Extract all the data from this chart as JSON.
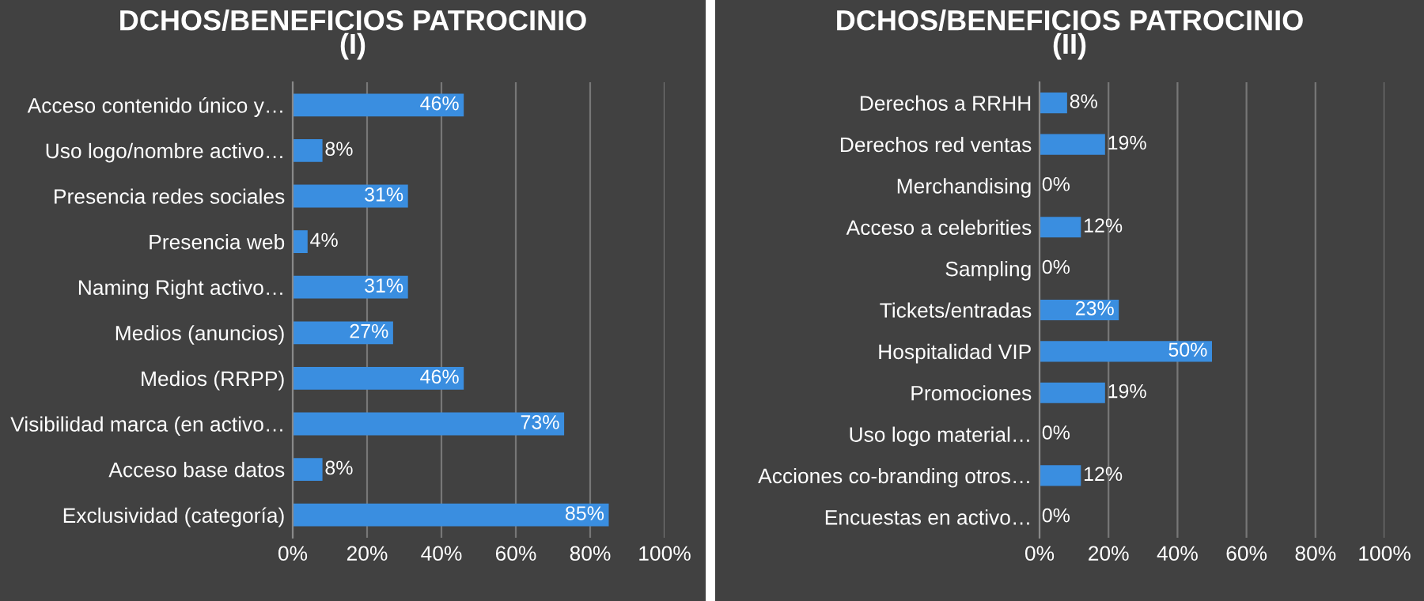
{
  "chart_data": [
    {
      "type": "bar",
      "orientation": "horizontal",
      "title": "DCHOS/BENEFICIOS PATROCINIO\n(I)",
      "categories": [
        "Acceso contenido único y…",
        "Uso logo/nombre activo…",
        "Presencia redes sociales",
        "Presencia web",
        "Naming Right activo…",
        "Medios (anuncios)",
        "Medios (RRPP)",
        "Visibilidad marca (en activo…",
        "Acceso base datos",
        "Exclusividad (categoría)"
      ],
      "values": [
        46,
        8,
        31,
        4,
        31,
        27,
        46,
        73,
        8,
        85
      ],
      "value_labels": [
        "46%",
        "8%",
        "31%",
        "4%",
        "31%",
        "27%",
        "46%",
        "73%",
        "8%",
        "85%"
      ],
      "color": "#3a8ee0",
      "xlim": [
        0,
        100
      ],
      "xticks": [
        {
          "value": 0,
          "label": "0%"
        },
        {
          "value": 20,
          "label": "20%"
        },
        {
          "value": 40,
          "label": "40%"
        },
        {
          "value": 60,
          "label": "60%"
        },
        {
          "value": 80,
          "label": "80%"
        },
        {
          "value": 100,
          "label": "100%"
        }
      ],
      "grid": "x"
    },
    {
      "type": "bar",
      "orientation": "horizontal",
      "title": "DCHOS/BENEFICIOS PATROCINIO\n(II)",
      "categories": [
        "Derechos a RRHH",
        "Derechos red ventas",
        "Merchandising",
        "Acceso a celebrities",
        "Sampling",
        "Tickets/entradas",
        "Hospitalidad VIP",
        "Promociones",
        "Uso logo material…",
        "Acciones co-branding otros…",
        "Encuestas en activo…"
      ],
      "values": [
        8,
        19,
        0,
        12,
        0,
        23,
        50,
        19,
        0,
        12,
        0
      ],
      "value_labels": [
        "8%",
        "19%",
        "0%",
        "12%",
        "0%",
        "23%",
        "50%",
        "19%",
        "0%",
        "12%",
        "0%"
      ],
      "color": "#3a8ee0",
      "xlim": [
        0,
        100
      ],
      "xticks": [
        {
          "value": 0,
          "label": "0%"
        },
        {
          "value": 20,
          "label": "20%"
        },
        {
          "value": 40,
          "label": "40%"
        },
        {
          "value": 60,
          "label": "60%"
        },
        {
          "value": 80,
          "label": "80%"
        },
        {
          "value": 100,
          "label": "100%"
        }
      ],
      "grid": "x"
    }
  ]
}
